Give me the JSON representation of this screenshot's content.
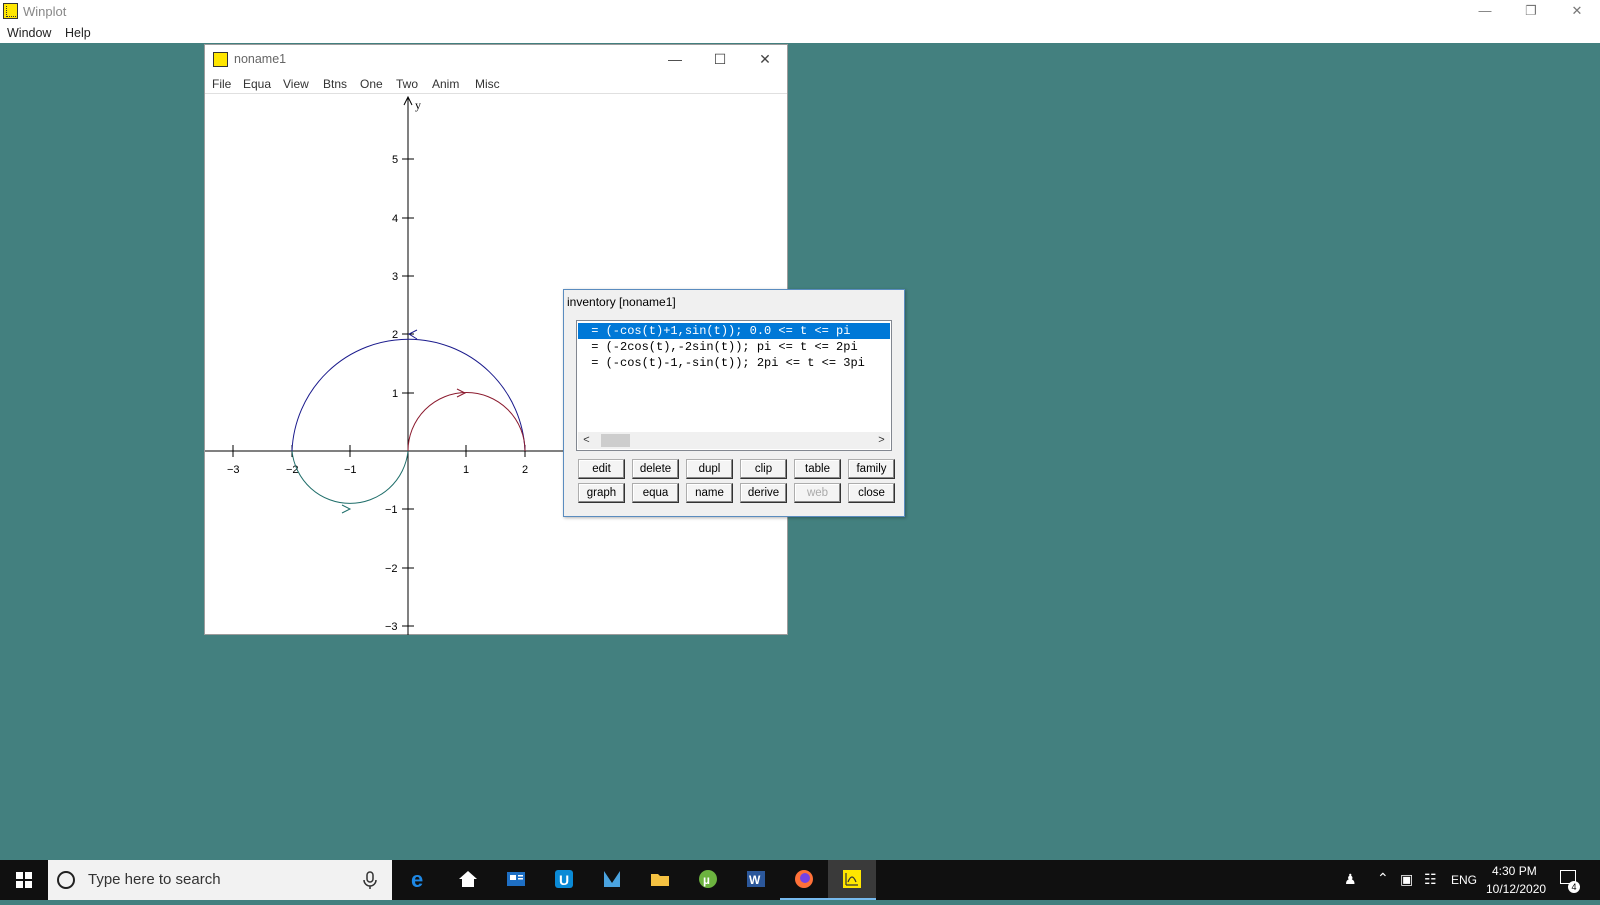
{
  "app": {
    "title": "Winplot",
    "menu": [
      "Window",
      "Help"
    ],
    "controls": {
      "minimize": "—",
      "restore": "❐",
      "close": "✕"
    }
  },
  "child_window": {
    "title": "noname1",
    "menu": [
      "File",
      "Equa",
      "View",
      "Btns",
      "One",
      "Two",
      "Anim",
      "Misc"
    ],
    "controls": {
      "minimize": "—",
      "maximize": "☐",
      "close": "✕"
    }
  },
  "plot": {
    "y_axis_label": "y",
    "x_ticks": [
      "−3",
      "−2",
      "−1",
      "1",
      "2"
    ],
    "y_ticks": [
      "5",
      "4",
      "3",
      "2",
      "1",
      "−1",
      "−2",
      "−3"
    ],
    "curve_colors": {
      "blue": "#1a1a8c",
      "red": "#8b1a2e",
      "teal": "#1f6e6a"
    }
  },
  "inventory": {
    "title": "inventory  [noname1]",
    "items": [
      " = (-cos(t)+1,sin(t)); 0.0 <= t <= pi",
      " = (-2cos(t),-2sin(t)); pi <= t <= 2pi",
      " = (-cos(t)-1,-sin(t)); 2pi <= t <= 3pi"
    ],
    "selected_index": 0,
    "buttons_row1": [
      "edit",
      "delete",
      "dupl",
      "clip",
      "table",
      "family"
    ],
    "buttons_row2": [
      "graph",
      "equa",
      "name",
      "derive",
      "web",
      "close"
    ],
    "scroll_left": "<",
    "scroll_right": ">"
  },
  "taskbar": {
    "search_placeholder": "Type here to search",
    "language": "ENG",
    "time": "4:30 PM",
    "date": "10/12/2020",
    "notification_count": "4",
    "apps": [
      "edge-icon",
      "home-icon",
      "news-icon",
      "app-u-icon",
      "visual-studio-icon",
      "file-explorer-icon",
      "utorrent-icon",
      "word-icon",
      "firefox-icon",
      "winplot-icon"
    ],
    "accent": "#76b9ed"
  }
}
